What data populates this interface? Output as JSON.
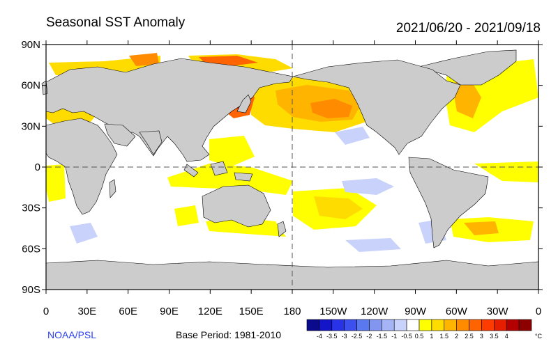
{
  "title": "Seasonal SST Anomaly",
  "date_range": "2021/06/20 - 2021/09/18",
  "credit": "NOAA/PSL",
  "base_period": "Base Period: 1981-2010",
  "map": {
    "land_color": "#cccccc",
    "ocean_color": "#ffffff",
    "lat_labels": [
      "90N",
      "60N",
      "30N",
      "0",
      "30S",
      "60S",
      "90S"
    ],
    "lon_labels": [
      "0",
      "30E",
      "60E",
      "90E",
      "120E",
      "150E",
      "180",
      "150W",
      "120W",
      "90W",
      "60W",
      "30W",
      "0"
    ],
    "dashed_reference_lines": [
      "equator",
      "dateline"
    ]
  },
  "colorbar": {
    "unit": "°C",
    "labels": [
      "-4",
      "-3.5",
      "-3",
      "-2.5",
      "-2",
      "-1.5",
      "-1",
      "-0.5",
      "0.5",
      "1",
      "1.5",
      "2",
      "2.5",
      "3",
      "3.5",
      "4"
    ],
    "colors": [
      "#0a0a8c",
      "#1414c8",
      "#2832e6",
      "#3c50f0",
      "#5a78f0",
      "#8296f0",
      "#a5b4f5",
      "#c8d2fa",
      "#ffffff",
      "#ffff00",
      "#ffdc00",
      "#ffb400",
      "#ff8c00",
      "#ff6400",
      "#ff3c00",
      "#e61e00",
      "#b40000",
      "#8c0000"
    ]
  },
  "anomaly_regions": {
    "levels": [
      "0.5-1",
      "1-1.5",
      "1.5-2",
      "2-2.5",
      "2.5-3",
      "3-3.5",
      "> 3.5",
      "-0.5--1"
    ],
    "colors": [
      "#ffff00",
      "#ffdc00",
      "#ffb400",
      "#ff8c00",
      "#ff6400",
      "#ff3c00",
      "#b40000",
      "#c8d2fa"
    ]
  }
}
